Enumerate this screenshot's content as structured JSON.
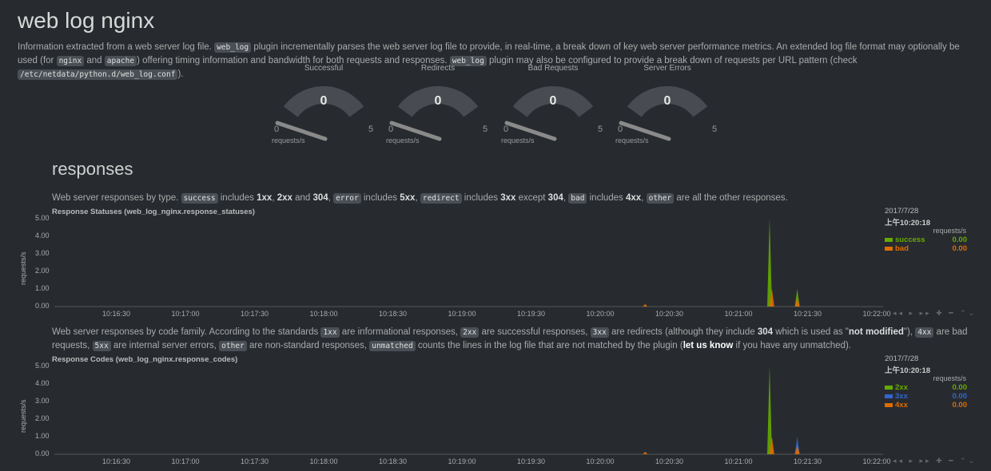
{
  "title": "web log nginx",
  "intro": {
    "p1": "Information extracted from a web server log file. ",
    "c1": "web_log",
    "p2": " plugin incrementally parses the web server log file to provide, in real-time, a break down of key web server performance metrics. An extended log file format may optionally be used (for ",
    "c2": "nginx",
    "p3": " and ",
    "c3": "apache",
    "p4": ") offering timing information and bandwidth for both requests and responses. ",
    "c4": "web_log",
    "p5": " plugin may also be configured to provide a break down of requests per URL pattern (check ",
    "c5": "/etc/netdata/python.d/web_log.conf",
    "p6": ")."
  },
  "gauges": [
    {
      "title": "Successful",
      "value": "0",
      "min": "0",
      "max": "5",
      "units": "requests/s",
      "level": 0
    },
    {
      "title": "Redirects",
      "value": "0",
      "min": "0",
      "max": "5",
      "units": "requests/s",
      "level": 0
    },
    {
      "title": "Bad Requests",
      "value": "0",
      "min": "0",
      "max": "5",
      "units": "requests/s",
      "level": 0
    },
    {
      "title": "Server Errors",
      "value": "0",
      "min": "0",
      "max": "5",
      "units": "requests/s",
      "level": 0
    }
  ],
  "section": "responses",
  "desc1": {
    "p1": "Web server responses by type. ",
    "c1": "success",
    "p2": " includes ",
    "b1": "1xx",
    "p3": ", ",
    "b2": "2xx",
    "p4": " and ",
    "b3": "304",
    "p5": ", ",
    "c2": "error",
    "p6": " includes ",
    "b4": "5xx",
    "p7": ", ",
    "c3": "redirect",
    "p8": " includes ",
    "b5": "3xx",
    "p9": " except ",
    "b6": "304",
    "p10": ", ",
    "c4": "bad",
    "p11": " includes ",
    "b7": "4xx",
    "p12": ", ",
    "c5": "other",
    "p13": " are all the other responses."
  },
  "desc2": {
    "p1": "Web server responses by code family. According to the standards ",
    "c1": "1xx",
    "p2": " are informational responses, ",
    "c2": "2xx",
    "p3": " are successful responses, ",
    "c3": "3xx",
    "p4": " are redirects (although they include ",
    "b1": "304",
    "p5": " which is used as \"",
    "b2": "not modified",
    "p6": "\"), ",
    "c4": "4xx",
    "p7": " are bad requests, ",
    "c5": "5xx",
    "p8": " are internal server errors, ",
    "c6": "other",
    "p9": " are non-standard responses, ",
    "c7": "unmatched",
    "p10": " counts the lines in the log file that are not matched by the plugin (",
    "a1": "let us know",
    "p11": " if you have any unmatched)."
  },
  "charts": [
    {
      "title": "Response Statuses (web_log_nginx.response_statuses)",
      "ylabel": "requests/s",
      "legend_date": "2017/7/28",
      "legend_time": "上午10:20:18",
      "legend_units": "requests/s",
      "legend": [
        {
          "name": "success",
          "value": "0.00",
          "color": "#66aa00"
        },
        {
          "name": "bad",
          "value": "0.00",
          "color": "#e06c00"
        }
      ],
      "chart_data": {
        "type": "area",
        "yticks": [
          "5.00",
          "4.00",
          "3.00",
          "2.00",
          "1.00",
          "0.00"
        ],
        "ylim": [
          0,
          5
        ],
        "xticks": [
          "10:16:30",
          "10:17:00",
          "10:17:30",
          "10:18:00",
          "10:18:30",
          "10:19:00",
          "10:19:30",
          "10:20:00",
          "10:20:30",
          "10:21:00",
          "10:21:30",
          "10:22:00"
        ],
        "series": [
          {
            "name": "success",
            "color": "#66aa00",
            "spikes": [
              {
                "t": 1001.5,
                "v": 5.0
              },
              {
                "t": 1013.5,
                "v": 1.0
              }
            ]
          },
          {
            "name": "bad",
            "color": "#e06c00",
            "spikes": [
              {
                "t": 962,
                "v": 0.15
              },
              {
                "t": 1003,
                "v": 1.0
              },
              {
                "t": 1013.5,
                "v": 0.5
              }
            ]
          }
        ]
      }
    },
    {
      "title": "Response Codes (web_log_nginx.response_codes)",
      "ylabel": "requests/s",
      "legend_date": "2017/7/28",
      "legend_time": "上午10:20:18",
      "legend_units": "requests/s",
      "legend": [
        {
          "name": "2xx",
          "value": "0.00",
          "color": "#66aa00"
        },
        {
          "name": "3xx",
          "value": "0.00",
          "color": "#3366cc"
        },
        {
          "name": "4xx",
          "value": "0.00",
          "color": "#e06c00"
        }
      ],
      "chart_data": {
        "type": "area",
        "yticks": [
          "5.00",
          "4.00",
          "3.00",
          "2.00",
          "1.00",
          "0.00"
        ],
        "ylim": [
          0,
          5
        ],
        "xticks": [
          "10:16:30",
          "10:17:00",
          "10:17:30",
          "10:18:00",
          "10:18:30",
          "10:19:00",
          "10:19:30",
          "10:20:00",
          "10:20:30",
          "10:21:00",
          "10:21:30",
          "10:22:00"
        ],
        "series": [
          {
            "name": "2xx",
            "color": "#66aa00",
            "spikes": [
              {
                "t": 1001.5,
                "v": 5.0
              }
            ]
          },
          {
            "name": "3xx",
            "color": "#3366cc",
            "spikes": [
              {
                "t": 1013.5,
                "v": 1.0
              }
            ]
          },
          {
            "name": "4xx",
            "color": "#e06c00",
            "spikes": [
              {
                "t": 962,
                "v": 0.15
              },
              {
                "t": 1003,
                "v": 1.0
              },
              {
                "t": 1013.5,
                "v": 0.5
              }
            ]
          }
        ]
      }
    }
  ]
}
